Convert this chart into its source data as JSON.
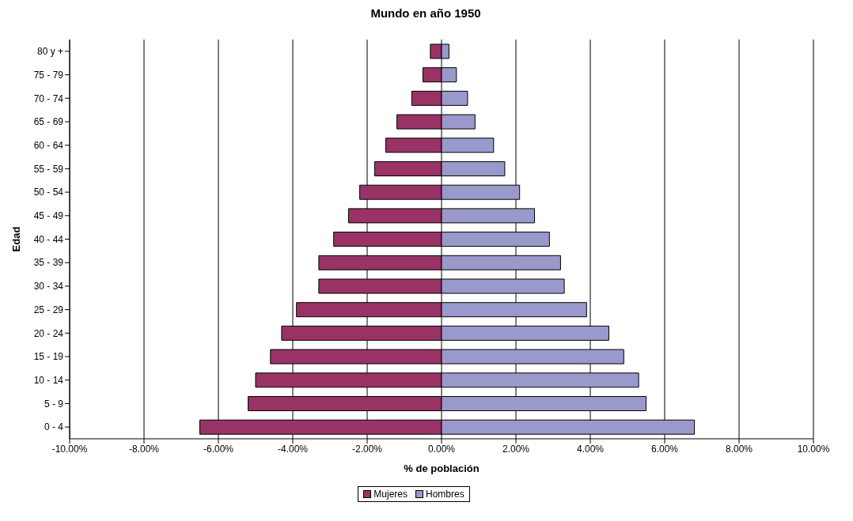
{
  "chart_data": {
    "type": "bar",
    "title": "Mundo en año 1950",
    "xlabel": "% de población",
    "ylabel": "Edad",
    "orientation": "horizontal",
    "stacked": true,
    "categories": [
      "80 y +",
      "75 - 79",
      "70 - 74",
      "65 - 69",
      "60 - 64",
      "55 - 59",
      "50 - 54",
      "45 - 49",
      "40 - 44",
      "35 - 39",
      "30 - 34",
      "25 - 29",
      "20 - 24",
      "15 - 19",
      "10 - 14",
      "5 -  9",
      "0 -  4"
    ],
    "series": [
      {
        "name": "Mujeres",
        "color": "#993366",
        "values": [
          -0.3,
          -0.5,
          -0.8,
          -1.2,
          -1.5,
          -1.8,
          -2.2,
          -2.5,
          -2.9,
          -3.3,
          -3.3,
          -3.9,
          -4.3,
          -4.6,
          -5.0,
          -5.2,
          -6.5
        ]
      },
      {
        "name": "Hombres",
        "color": "#9999cc",
        "values": [
          0.2,
          0.4,
          0.7,
          0.9,
          1.4,
          1.7,
          2.1,
          2.5,
          2.9,
          3.2,
          3.3,
          3.9,
          4.5,
          4.9,
          5.3,
          5.5,
          6.8
        ]
      }
    ],
    "xlim": [
      -10,
      10
    ],
    "xticks": [
      {
        "value": -10,
        "label": "-10.00%"
      },
      {
        "value": -8,
        "label": "-8.00%"
      },
      {
        "value": -6,
        "label": "-6.00%"
      },
      {
        "value": -4,
        "label": "-4.00%"
      },
      {
        "value": -2,
        "label": "-2.00%"
      },
      {
        "value": 0,
        "label": "0.00%"
      },
      {
        "value": 2,
        "label": "2.00%"
      },
      {
        "value": 4,
        "label": "4.00%"
      },
      {
        "value": 6,
        "label": "6.00%"
      },
      {
        "value": 8,
        "label": "8.00%"
      },
      {
        "value": 10,
        "label": "10.00%"
      }
    ],
    "grid": "x",
    "legend": "bottom"
  }
}
